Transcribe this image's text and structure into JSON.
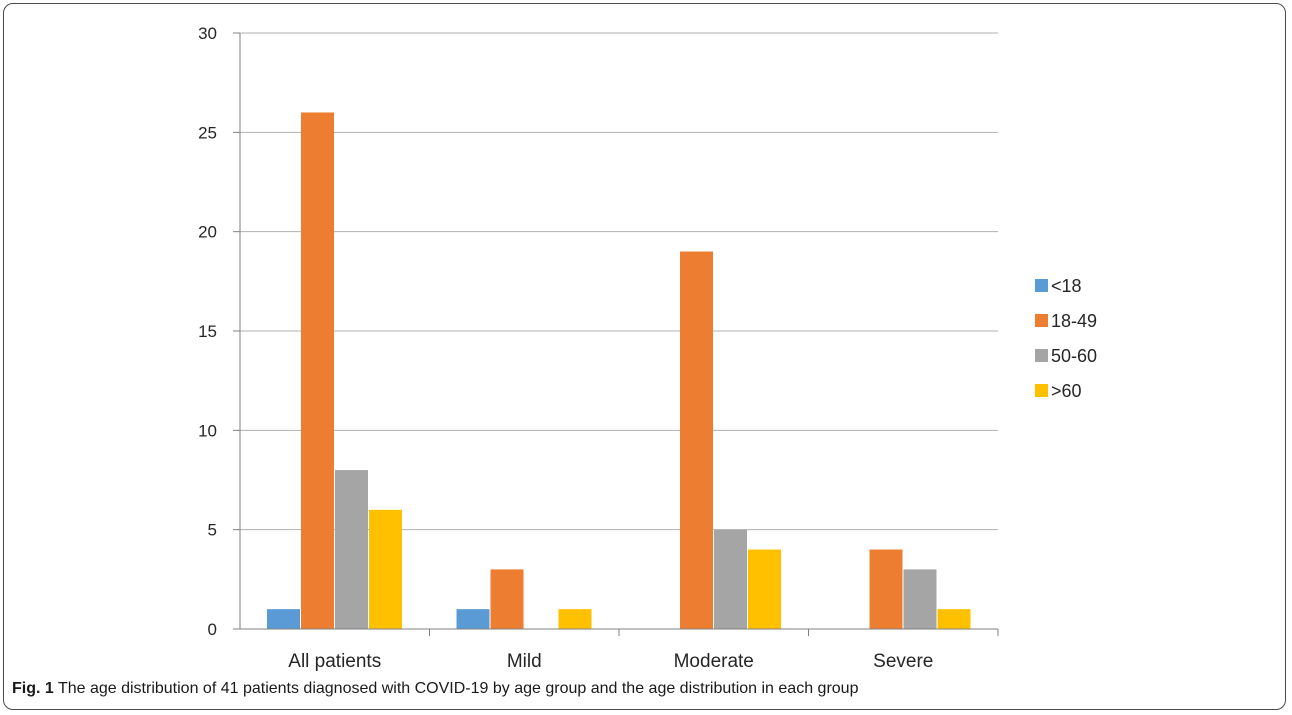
{
  "chart_data": {
    "type": "bar",
    "categories": [
      "All patients",
      "Mild",
      "Moderate",
      "Severe"
    ],
    "series": [
      {
        "name": "<18",
        "values": [
          1,
          1,
          0,
          0
        ],
        "color": "#5b9bd5"
      },
      {
        "name": "18-49",
        "values": [
          26,
          3,
          19,
          4
        ],
        "color": "#ed7d31"
      },
      {
        "name": "50-60",
        "values": [
          8,
          0,
          5,
          3
        ],
        "color": "#a5a5a5"
      },
      {
        "name": ">60",
        "values": [
          6,
          1,
          4,
          1
        ],
        "color": "#ffc000"
      }
    ],
    "ylim": [
      0,
      30
    ],
    "yticks": [
      0,
      5,
      10,
      15,
      20,
      25,
      30
    ],
    "grid": true,
    "legend_position": "right"
  },
  "caption": {
    "label": "Fig. 1",
    "text": " The age distribution of 41 patients diagnosed with COVID-19 by age group and the age distribution in each group"
  }
}
